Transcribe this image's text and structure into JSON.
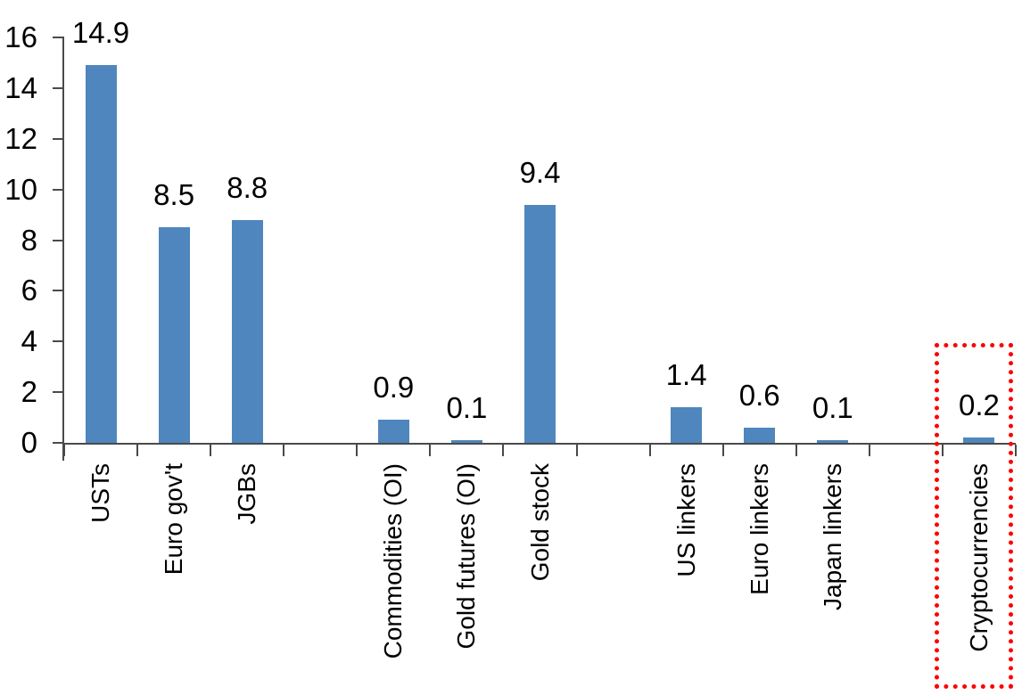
{
  "chart_data": {
    "type": "bar",
    "title": "",
    "xlabel": "",
    "ylabel": "",
    "categories": [
      "USTs",
      "Euro gov't",
      "JGBs",
      "Commodities (OI)",
      "Gold futures (OI)",
      "Gold stock",
      "US linkers",
      "Euro linkers",
      "Japan linkers",
      "Cryptocurrencies"
    ],
    "values": [
      14.9,
      8.5,
      8.8,
      0.9,
      0.1,
      9.4,
      1.4,
      0.6,
      0.1,
      0.2
    ],
    "value_labels": [
      "14.9",
      "8.5",
      "8.8",
      "0.9",
      "0.1",
      "9.4",
      "1.4",
      "0.6",
      "0.1",
      "0.2"
    ],
    "slots": [
      0,
      1,
      2,
      4,
      5,
      6,
      8,
      9,
      10,
      12
    ],
    "total_slots": 13,
    "group_gaps_after": [
      "JGBs",
      "Gold stock",
      "Japan linkers"
    ],
    "y_axis": {
      "min": 0,
      "max": 16,
      "step": 2,
      "tick_labels": [
        "16",
        "14",
        "12",
        "10",
        "8",
        "6",
        "4",
        "2",
        "0"
      ]
    },
    "grid": false,
    "legend": false,
    "bar_color": "#4F86BD",
    "axis_color": "#4A4A4A",
    "text_color": "#000000",
    "highlight": {
      "category": "Cryptocurrencies",
      "slot": 12,
      "style": "red-dotted-box",
      "color": "#FF0000"
    }
  }
}
